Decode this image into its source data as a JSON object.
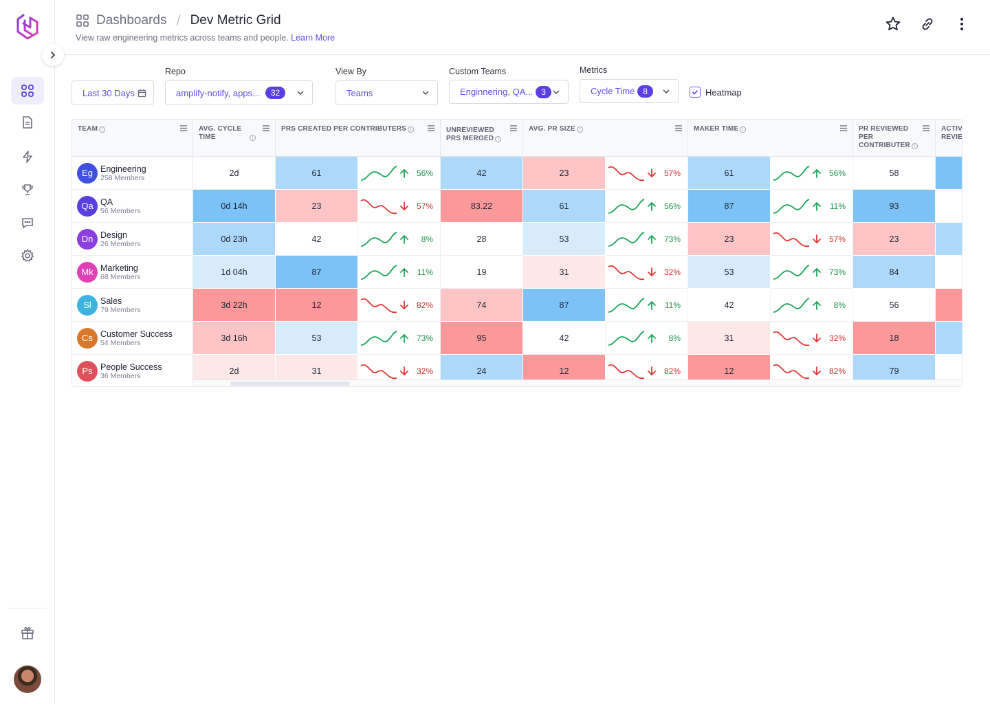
{
  "breadcrumb": {
    "parent": "Dashboards",
    "title": "Dev Metric Grid"
  },
  "subtitle": {
    "text": "View raw engineering metrics across teams and people.",
    "link": "Learn More"
  },
  "filters": {
    "date": "Last 30 Days",
    "repo_label": "Repo",
    "repo_value": "amplify-notify, apps...",
    "repo_count": "32",
    "viewby_label": "View By",
    "viewby_value": "Teams",
    "custom_label": "Custom Teams",
    "custom_value": "Enginnering, QA...",
    "custom_count": "3",
    "metrics_label": "Metrics",
    "metrics_value": "Cycle Time",
    "metrics_count": "8",
    "heatmap_label": "Heatmap",
    "heatmap_checked": true
  },
  "columns": {
    "team": "TEAM",
    "cycle": "AVG. CYCLE TIME",
    "prs_created": "PRS CREATED PER CONTRIBUTERS",
    "unreviewed_1": "UNREVIEWED",
    "unreviewed_2": "PRS MERGED",
    "pr_size": "AVG. PR SIZE",
    "maker": "MAKER TIME",
    "pr_reviewed_1": "PR REVIEWED",
    "pr_reviewed_2": "PER",
    "pr_reviewed_3": "CONTRIBUTER",
    "active_1": "ACTIVE",
    "active_2": "REVIEW"
  },
  "colors": {
    "blue_strong": "#7cc2f7",
    "blue_mid": "#acd8fa",
    "blue_light": "#d6ecfc",
    "red_strong": "#fb9899",
    "red_mid": "#fcc4c5",
    "red_light": "#fde8e8",
    "white": "#ffffff",
    "accent": "#5b3fe0"
  },
  "rows": [
    {
      "initials": "Eg",
      "avatar": "#3f50e0",
      "name": "Engineering",
      "members": "258 Members",
      "cycle": "2d",
      "cycle_c": "white",
      "prs": "61",
      "prs_c": "blue_mid",
      "prs_trend": "up",
      "prs_pct": "56%",
      "unrev": "42",
      "unrev_c": "blue_mid",
      "size": "23",
      "size_c": "red_mid",
      "size_trend": "down",
      "size_pct": "57%",
      "maker": "61",
      "maker_c": "blue_mid",
      "maker_trend": "up",
      "maker_pct": "56%",
      "reviewed": "58",
      "reviewed_c": "white",
      "active_c": "blue_strong"
    },
    {
      "initials": "Qa",
      "avatar": "#5a3fe0",
      "name": "QA",
      "members": "56 Members",
      "cycle": "0d 14h",
      "cycle_c": "blue_strong",
      "prs": "23",
      "prs_c": "red_mid",
      "prs_trend": "down",
      "prs_pct": "57%",
      "unrev": "83.22",
      "unrev_c": "red_strong",
      "size": "61",
      "size_c": "blue_mid",
      "size_trend": "up",
      "size_pct": "56%",
      "maker": "87",
      "maker_c": "blue_strong",
      "maker_trend": "up",
      "maker_pct": "11%",
      "reviewed": "93",
      "reviewed_c": "blue_strong",
      "active_c": "white"
    },
    {
      "initials": "Dn",
      "avatar": "#8b3fe0",
      "name": "Design",
      "members": "26 Members",
      "cycle": "0d 23h",
      "cycle_c": "blue_mid",
      "prs": "42",
      "prs_c": "white",
      "prs_trend": "up",
      "prs_pct": "8%",
      "unrev": "28",
      "unrev_c": "white",
      "size": "53",
      "size_c": "blue_light",
      "size_trend": "up",
      "size_pct": "73%",
      "maker": "23",
      "maker_c": "red_mid",
      "maker_trend": "down",
      "maker_pct": "57%",
      "reviewed": "23",
      "reviewed_c": "red_mid",
      "active_c": "blue_mid"
    },
    {
      "initials": "Mk",
      "avatar": "#e03fb5",
      "name": "Marketing",
      "members": "68 Members",
      "cycle": "1d 04h",
      "cycle_c": "blue_light",
      "prs": "87",
      "prs_c": "blue_strong",
      "prs_trend": "up",
      "prs_pct": "11%",
      "unrev": "19",
      "unrev_c": "white",
      "size": "31",
      "size_c": "red_light",
      "size_trend": "down",
      "size_pct": "32%",
      "maker": "53",
      "maker_c": "blue_light",
      "maker_trend": "up",
      "maker_pct": "73%",
      "reviewed": "84",
      "reviewed_c": "blue_mid",
      "active_c": "white"
    },
    {
      "initials": "Sl",
      "avatar": "#3fb3e0",
      "name": "Sales",
      "members": "79 Members",
      "cycle": "3d 22h",
      "cycle_c": "red_strong",
      "prs": "12",
      "prs_c": "red_strong",
      "prs_trend": "down",
      "prs_pct": "82%",
      "unrev": "74",
      "unrev_c": "red_mid",
      "size": "87",
      "size_c": "blue_strong",
      "size_trend": "up",
      "size_pct": "11%",
      "maker": "42",
      "maker_c": "white",
      "maker_trend": "up",
      "maker_pct": "8%",
      "reviewed": "56",
      "reviewed_c": "white",
      "active_c": "red_strong"
    },
    {
      "initials": "Cs",
      "avatar": "#d9782a",
      "name": "Customer Success",
      "members": "54 Members",
      "cycle": "3d 16h",
      "cycle_c": "red_mid",
      "prs": "53",
      "prs_c": "blue_light",
      "prs_trend": "up",
      "prs_pct": "73%",
      "unrev": "95",
      "unrev_c": "red_strong",
      "size": "42",
      "size_c": "white",
      "size_trend": "up",
      "size_pct": "8%",
      "maker": "31",
      "maker_c": "red_light",
      "maker_trend": "down",
      "maker_pct": "32%",
      "reviewed": "18",
      "reviewed_c": "red_strong",
      "active_c": "blue_mid"
    },
    {
      "initials": "Ps",
      "avatar": "#e0505a",
      "name": "People Success",
      "members": "36 Members",
      "cycle": "2d",
      "cycle_c": "red_light",
      "prs": "31",
      "prs_c": "red_light",
      "prs_trend": "down",
      "prs_pct": "32%",
      "unrev": "24",
      "unrev_c": "blue_mid",
      "size": "12",
      "size_c": "red_strong",
      "size_trend": "down",
      "size_pct": "82%",
      "maker": "12",
      "maker_c": "red_strong",
      "maker_trend": "down",
      "maker_pct": "82%",
      "reviewed": "79",
      "reviewed_c": "blue_mid",
      "active_c": "white"
    }
  ]
}
